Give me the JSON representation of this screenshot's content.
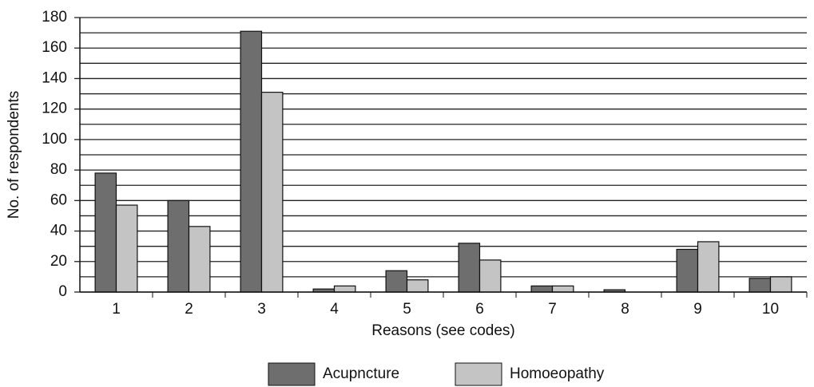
{
  "chart_data": {
    "type": "bar",
    "x_label": "Reasons (see codes)",
    "y_label": "No. of respondents",
    "categories": [
      "1",
      "2",
      "3",
      "4",
      "5",
      "6",
      "7",
      "8",
      "9",
      "10"
    ],
    "series": [
      {
        "name": "Acupncture",
        "color": "#6e6e6e",
        "values": [
          78,
          60,
          171,
          2,
          14,
          32,
          4,
          1.5,
          28,
          9
        ]
      },
      {
        "name": "Homoeopathy",
        "color": "#c4c4c4",
        "values": [
          57,
          43,
          131,
          4,
          8,
          21,
          4,
          0,
          33,
          10
        ]
      }
    ],
    "ylim": [
      0,
      180
    ],
    "yticks": [
      0,
      20,
      40,
      60,
      80,
      100,
      120,
      140,
      160,
      180
    ],
    "minor_yticks": [
      10,
      30,
      50,
      70,
      90,
      110,
      130,
      150,
      170
    ],
    "grid": true,
    "legend": "bottom"
  }
}
